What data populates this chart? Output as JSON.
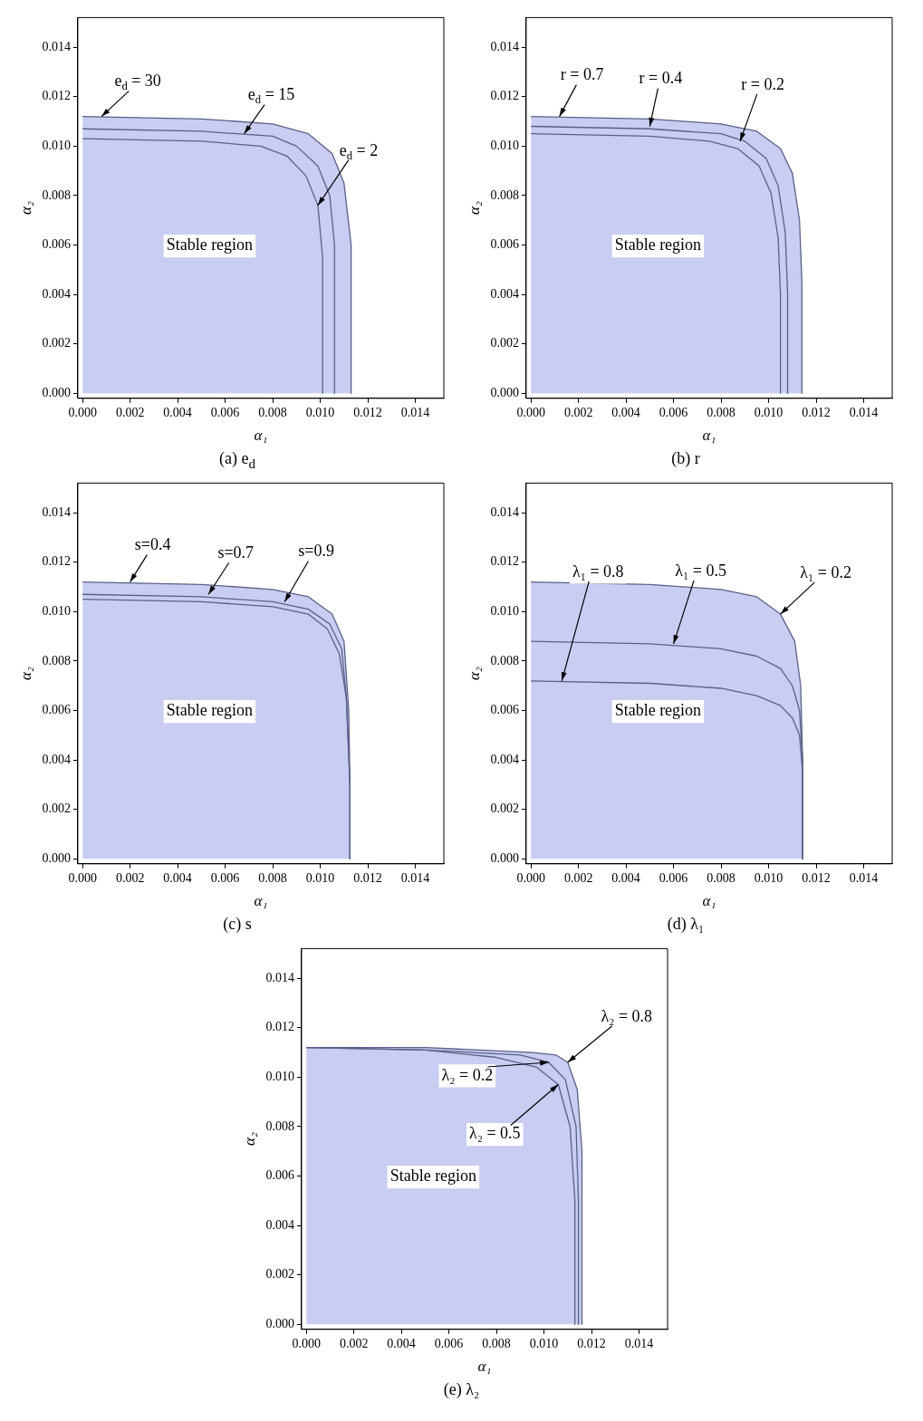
{
  "chart_data": [
    {
      "type": "line",
      "title": "(a) e$_{d}$",
      "xlabel": "α₁",
      "ylabel": "α₂",
      "xlim": [
        -0.0002,
        0.0152
      ],
      "ylim": [
        -0.0002,
        0.0152
      ],
      "xticks": [
        {
          "value": 0,
          "label": "0.000"
        },
        {
          "value": 0.002,
          "label": "0.002"
        },
        {
          "value": 0.004,
          "label": "0.004"
        },
        {
          "value": 0.006,
          "label": "0.006"
        },
        {
          "value": 0.008,
          "label": "0.008"
        },
        {
          "value": 0.01,
          "label": "0.010"
        },
        {
          "value": 0.012,
          "label": "0.012"
        },
        {
          "value": 0.014,
          "label": "0.014"
        }
      ],
      "yticks": [
        {
          "value": 0,
          "label": "0.000"
        },
        {
          "value": 0.002,
          "label": "0.002"
        },
        {
          "value": 0.004,
          "label": "0.004"
        },
        {
          "value": 0.006,
          "label": "0.006"
        },
        {
          "value": 0.008,
          "label": "0.008"
        },
        {
          "value": 0.01,
          "label": "0.010"
        },
        {
          "value": 0.012,
          "label": "0.012"
        },
        {
          "value": 0.014,
          "label": "0.014"
        }
      ],
      "grid": false,
      "legend": false,
      "marker": "none",
      "line_style": "solid",
      "series": [
        {
          "type": "area",
          "color": "#c8cdf1",
          "x": [
            0,
            0.005,
            0.008,
            0.0095,
            0.0105,
            0.011,
            0.0113,
            0.0113
          ],
          "values": [
            0.0112,
            0.0111,
            0.0109,
            0.0105,
            0.0097,
            0.0085,
            0.006,
            0
          ]
        },
        {
          "type": "line",
          "color": "#5b6089",
          "x": [
            0,
            0.005,
            0.008,
            0.009,
            0.0099,
            0.0104,
            0.0106,
            0.0106
          ],
          "values": [
            0.0107,
            0.0106,
            0.0104,
            0.01,
            0.0092,
            0.008,
            0.006,
            0
          ]
        },
        {
          "type": "line",
          "color": "#5b6089",
          "x": [
            0,
            0.005,
            0.0075,
            0.0086,
            0.0094,
            0.0099,
            0.0101,
            0.0101
          ],
          "values": [
            0.0103,
            0.0102,
            0.01,
            0.0096,
            0.0088,
            0.0076,
            0.0055,
            0
          ]
        }
      ],
      "annotations": [
        {
          "text": "e$_{d}$ = 30",
          "x": 0.0008,
          "y": 0.0112
        },
        {
          "text": "e$_{d}$ = 15",
          "x": 0.0068,
          "y": 0.0105
        },
        {
          "text": "e$_{d}$ = 2",
          "x": 0.0099,
          "y": 0.0076
        },
        "Stable region"
      ]
    },
    {
      "type": "line",
      "title": "(b) r",
      "xlabel": "α₁",
      "ylabel": "α₂",
      "xlim": [
        -0.0002,
        0.0152
      ],
      "ylim": [
        -0.0002,
        0.0152
      ],
      "xticks": [
        {
          "value": 0,
          "label": "0.000"
        },
        {
          "value": 0.002,
          "label": "0.002"
        },
        {
          "value": 0.004,
          "label": "0.004"
        },
        {
          "value": 0.006,
          "label": "0.006"
        },
        {
          "value": 0.008,
          "label": "0.008"
        },
        {
          "value": 0.01,
          "label": "0.010"
        },
        {
          "value": 0.012,
          "label": "0.012"
        },
        {
          "value": 0.014,
          "label": "0.014"
        }
      ],
      "yticks": [
        {
          "value": 0,
          "label": "0.000"
        },
        {
          "value": 0.002,
          "label": "0.002"
        },
        {
          "value": 0.004,
          "label": "0.004"
        },
        {
          "value": 0.006,
          "label": "0.006"
        },
        {
          "value": 0.008,
          "label": "0.008"
        },
        {
          "value": 0.01,
          "label": "0.010"
        },
        {
          "value": 0.012,
          "label": "0.012"
        },
        {
          "value": 0.014,
          "label": "0.014"
        }
      ],
      "grid": false,
      "legend": false,
      "marker": "none",
      "line_style": "solid",
      "series": [
        {
          "type": "area",
          "color": "#c8cdf1",
          "x": [
            0,
            0.005,
            0.008,
            0.0095,
            0.0105,
            0.011,
            0.0113,
            0.0114,
            0.0114
          ],
          "values": [
            0.0112,
            0.0111,
            0.0109,
            0.0106,
            0.0099,
            0.0089,
            0.007,
            0.0045,
            0
          ]
        },
        {
          "type": "line",
          "color": "#5b6089",
          "x": [
            0,
            0.005,
            0.008,
            0.009,
            0.0099,
            0.0104,
            0.0107,
            0.0108,
            0.0108
          ],
          "values": [
            0.0108,
            0.0107,
            0.0105,
            0.0102,
            0.0095,
            0.0084,
            0.0065,
            0.004,
            0
          ]
        },
        {
          "type": "line",
          "color": "#5b6089",
          "x": [
            0,
            0.005,
            0.0075,
            0.0087,
            0.0096,
            0.0101,
            0.0104,
            0.0105,
            0.0105
          ],
          "values": [
            0.0105,
            0.0104,
            0.0102,
            0.0099,
            0.0092,
            0.0081,
            0.0063,
            0.004,
            0
          ]
        }
      ],
      "annotations": [
        {
          "text": "r = 0.7",
          "x": 0.0012,
          "y": 0.0112
        },
        {
          "text": "r = 0.4",
          "x": 0.005,
          "y": 0.0108
        },
        {
          "text": "r = 0.2",
          "x": 0.0088,
          "y": 0.0102
        },
        "Stable region"
      ]
    },
    {
      "type": "line",
      "title": "(c) s",
      "xlabel": "α₁",
      "ylabel": "α₂",
      "xlim": [
        -0.0002,
        0.0152
      ],
      "ylim": [
        -0.0002,
        0.0152
      ],
      "xticks": [
        {
          "value": 0,
          "label": "0.000"
        },
        {
          "value": 0.002,
          "label": "0.002"
        },
        {
          "value": 0.004,
          "label": "0.004"
        },
        {
          "value": 0.006,
          "label": "0.006"
        },
        {
          "value": 0.008,
          "label": "0.008"
        },
        {
          "value": 0.01,
          "label": "0.010"
        },
        {
          "value": 0.012,
          "label": "0.012"
        },
        {
          "value": 0.014,
          "label": "0.014"
        }
      ],
      "yticks": [
        {
          "value": 0,
          "label": "0.000"
        },
        {
          "value": 0.002,
          "label": "0.002"
        },
        {
          "value": 0.004,
          "label": "0.004"
        },
        {
          "value": 0.006,
          "label": "0.006"
        },
        {
          "value": 0.008,
          "label": "0.008"
        },
        {
          "value": 0.01,
          "label": "0.010"
        },
        {
          "value": 0.012,
          "label": "0.012"
        },
        {
          "value": 0.014,
          "label": "0.014"
        }
      ],
      "grid": false,
      "legend": false,
      "marker": "none",
      "line_style": "solid",
      "series": [
        {
          "type": "area",
          "color": "#c8cdf1",
          "x": [
            0,
            0.005,
            0.008,
            0.0095,
            0.0105,
            0.011,
            0.0112,
            0.01125,
            0.01125
          ],
          "values": [
            0.0112,
            0.0111,
            0.0109,
            0.0106,
            0.0099,
            0.0088,
            0.006,
            0.003,
            0
          ]
        },
        {
          "type": "line",
          "color": "#5b6089",
          "x": [
            0,
            0.005,
            0.008,
            0.0095,
            0.0104,
            0.0109,
            0.0111,
            0.01125,
            0.01125
          ],
          "values": [
            0.0107,
            0.0106,
            0.0104,
            0.0101,
            0.0095,
            0.0085,
            0.0065,
            0.003,
            0
          ]
        },
        {
          "type": "line",
          "color": "#5b6089",
          "x": [
            0,
            0.005,
            0.008,
            0.0095,
            0.0103,
            0.0108,
            0.0111,
            0.01125,
            0.01125
          ],
          "values": [
            0.0105,
            0.0104,
            0.0102,
            0.0099,
            0.0093,
            0.0083,
            0.0065,
            0.003,
            0
          ]
        }
      ],
      "annotations": [
        {
          "text": "s=0.4",
          "x": 0.002,
          "y": 0.0112
        },
        {
          "text": "s=0.7",
          "x": 0.0053,
          "y": 0.0107
        },
        {
          "text": "s=0.9",
          "x": 0.0085,
          "y": 0.0104
        },
        "Stable region"
      ]
    },
    {
      "type": "line",
      "title": "(d) λ₁",
      "xlabel": "α₁",
      "ylabel": "α₂",
      "xlim": [
        -0.0002,
        0.0152
      ],
      "ylim": [
        -0.0002,
        0.0152
      ],
      "xticks": [
        {
          "value": 0,
          "label": "0.000"
        },
        {
          "value": 0.002,
          "label": "0.002"
        },
        {
          "value": 0.004,
          "label": "0.004"
        },
        {
          "value": 0.006,
          "label": "0.006"
        },
        {
          "value": 0.008,
          "label": "0.008"
        },
        {
          "value": 0.01,
          "label": "0.010"
        },
        {
          "value": 0.012,
          "label": "0.012"
        },
        {
          "value": 0.014,
          "label": "0.014"
        }
      ],
      "yticks": [
        {
          "value": 0,
          "label": "0.000"
        },
        {
          "value": 0.002,
          "label": "0.002"
        },
        {
          "value": 0.004,
          "label": "0.004"
        },
        {
          "value": 0.006,
          "label": "0.006"
        },
        {
          "value": 0.008,
          "label": "0.008"
        },
        {
          "value": 0.01,
          "label": "0.010"
        },
        {
          "value": 0.012,
          "label": "0.012"
        },
        {
          "value": 0.014,
          "label": "0.014"
        }
      ],
      "grid": false,
      "legend": false,
      "marker": "none",
      "line_style": "solid",
      "series": [
        {
          "type": "area",
          "color": "#c8cdf1",
          "x": [
            0,
            0.005,
            0.008,
            0.0095,
            0.0105,
            0.0111,
            0.01135,
            0.01143,
            0.01143
          ],
          "values": [
            0.0112,
            0.0111,
            0.0109,
            0.0106,
            0.0099,
            0.0088,
            0.007,
            0.004,
            0
          ]
        },
        {
          "type": "line",
          "color": "#5b6089",
          "x": [
            0,
            0.005,
            0.008,
            0.0095,
            0.0105,
            0.011,
            0.0113,
            0.01143,
            0.01143
          ],
          "values": [
            0.0088,
            0.0087,
            0.0085,
            0.0082,
            0.0077,
            0.007,
            0.006,
            0.004,
            0
          ]
        },
        {
          "type": "line",
          "color": "#5b6089",
          "x": [
            0,
            0.005,
            0.008,
            0.0095,
            0.0105,
            0.011,
            0.0113,
            0.01143,
            0.01143
          ],
          "values": [
            0.0072,
            0.0071,
            0.0069,
            0.0066,
            0.0062,
            0.0057,
            0.005,
            0.0035,
            0
          ]
        }
      ],
      "annotations": [
        {
          "text": "λ₁ = 0.2",
          "x": 0.0105,
          "y": 0.0099
        },
        {
          "text": "λ₁ = 0.5",
          "x": 0.006,
          "y": 0.0087
        },
        {
          "text": "λ₁ = 0.8",
          "x": 0.0013,
          "y": 0.0072
        },
        "Stable region"
      ]
    },
    {
      "type": "line",
      "title": "(e) λ₂",
      "xlabel": "α₁",
      "ylabel": "α₂",
      "xlim": [
        -0.0002,
        0.0152
      ],
      "ylim": [
        -0.0002,
        0.0152
      ],
      "xticks": [
        {
          "value": 0,
          "label": "0.000"
        },
        {
          "value": 0.002,
          "label": "0.002"
        },
        {
          "value": 0.004,
          "label": "0.004"
        },
        {
          "value": 0.006,
          "label": "0.006"
        },
        {
          "value": 0.008,
          "label": "0.008"
        },
        {
          "value": 0.01,
          "label": "0.010"
        },
        {
          "value": 0.012,
          "label": "0.012"
        },
        {
          "value": 0.014,
          "label": "0.014"
        }
      ],
      "yticks": [
        {
          "value": 0,
          "label": "0.000"
        },
        {
          "value": 0.002,
          "label": "0.002"
        },
        {
          "value": 0.004,
          "label": "0.004"
        },
        {
          "value": 0.006,
          "label": "0.006"
        },
        {
          "value": 0.008,
          "label": "0.008"
        },
        {
          "value": 0.01,
          "label": "0.010"
        },
        {
          "value": 0.012,
          "label": "0.012"
        },
        {
          "value": 0.014,
          "label": "0.014"
        }
      ],
      "grid": false,
      "legend": false,
      "marker": "none",
      "line_style": "solid",
      "series": [
        {
          "type": "area",
          "color": "#c8cdf1",
          "x": [
            0,
            0.005,
            0.0095,
            0.0105,
            0.011,
            0.0114,
            0.0116,
            0.0116
          ],
          "values": [
            0.0112,
            0.0112,
            0.011,
            0.0109,
            0.0106,
            0.0095,
            0.007,
            0
          ]
        },
        {
          "type": "line",
          "color": "#5b6089",
          "x": [
            0,
            0.005,
            0.009,
            0.0102,
            0.0109,
            0.01135,
            0.01145,
            0.01145
          ],
          "values": [
            0.0112,
            0.0111,
            0.0109,
            0.0106,
            0.0099,
            0.008,
            0.005,
            0
          ]
        },
        {
          "type": "line",
          "color": "#5b6089",
          "x": [
            0,
            0.005,
            0.008,
            0.0097,
            0.0106,
            0.0111,
            0.0113,
            0.0113
          ],
          "values": [
            0.0112,
            0.0111,
            0.0108,
            0.0104,
            0.0097,
            0.008,
            0.005,
            0
          ]
        }
      ],
      "annotations": [
        {
          "text": "λ₂ = 0.8",
          "x": 0.011,
          "y": 0.0106
        },
        {
          "text": "λ₂ = 0.2",
          "x": 0.0102,
          "y": 0.0106
        },
        {
          "text": "λ₂ = 0.5",
          "x": 0.0106,
          "y": 0.0097
        },
        "Stable region"
      ]
    }
  ]
}
